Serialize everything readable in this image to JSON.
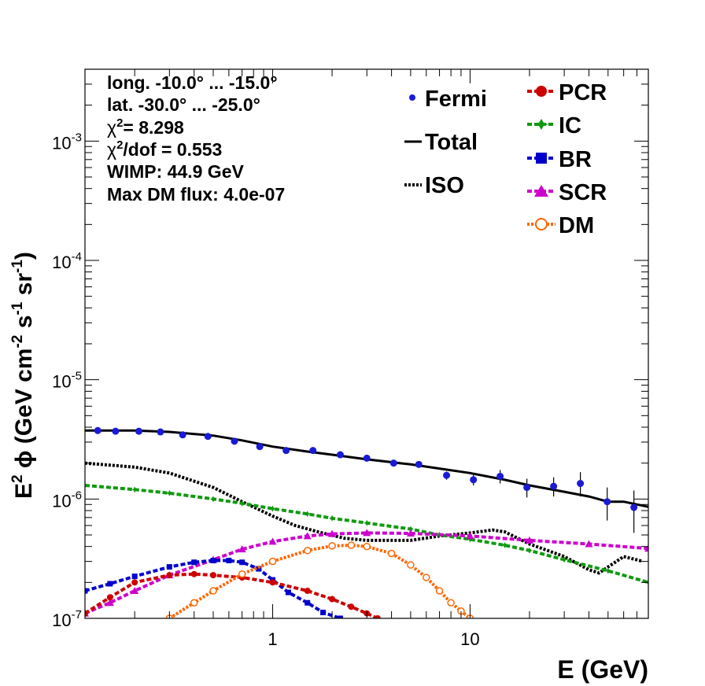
{
  "chart_data": {
    "type": "line",
    "xlabel": "E (GeV)",
    "ylabel": "E",
    "xscale": "log",
    "yscale": "log",
    "xlim": [
      0.112,
      80
    ],
    "ylim": [
      1e-07,
      0.004
    ],
    "grid": false,
    "legend_placement": "top-right",
    "x_tick_labels": [
      {
        "value": 1,
        "label": "1"
      },
      {
        "value": 10,
        "label": "10"
      }
    ],
    "y_tick_labels": [
      {
        "value": 1e-07,
        "mant": "10",
        "exp": "-7"
      },
      {
        "value": 1e-06,
        "mant": "10",
        "exp": "-6"
      },
      {
        "value": 1e-05,
        "mant": "10",
        "exp": "-5"
      },
      {
        "value": 0.0001,
        "mant": "10",
        "exp": "-4"
      },
      {
        "value": 0.001,
        "mant": "10",
        "exp": "-3"
      }
    ],
    "info": {
      "long": "long. -10.0° ... -15.0°",
      "lat": "lat. -30.0° ... -25.0°",
      "chi2": "= 8.298",
      "chi2dof": "/dof = 0.553",
      "wimp": "WIMP: 44.9 GeV",
      "maxdm": "Max DM flux: 4.0e-07"
    },
    "legend_left": {
      "fermi": "Fermi",
      "total": "Total",
      "iso": "ISO"
    },
    "legend_right": {
      "pcr": "PCR",
      "ic": "IC",
      "br": "BR",
      "scr": "SCR",
      "dm": "DM"
    },
    "colors": {
      "fermi": "#1a1ad6",
      "total": "#000000",
      "iso": "#000000",
      "pcr": "#cc0000",
      "ic": "#119911",
      "br": "#0000cc",
      "scr": "#cc00cc",
      "dm": "#ff6600"
    },
    "fermi": {
      "x": [
        0.13,
        0.16,
        0.21,
        0.27,
        0.35,
        0.47,
        0.64,
        0.86,
        1.17,
        1.6,
        2.2,
        3.0,
        4.1,
        5.5,
        7.6,
        10.4,
        14.2,
        19.4,
        26.5,
        36.2,
        49.5,
        67.6
      ],
      "y": [
        3.75e-06,
        3.7e-06,
        3.7e-06,
        3.65e-06,
        3.45e-06,
        3.35e-06,
        3.05e-06,
        2.75e-06,
        2.55e-06,
        2.55e-06,
        2.35e-06,
        2.2e-06,
        2e-06,
        1.95e-06,
        1.58e-06,
        1.45e-06,
        1.55e-06,
        1.25e-06,
        1.28e-06,
        1.35e-06,
        9.5e-07,
        8.5e-07
      ],
      "err_lo": [
        3.7e-06,
        3.65e-06,
        3.65e-06,
        3.6e-06,
        3.4e-06,
        3.3e-06,
        3e-06,
        2.7e-06,
        2.5e-06,
        2.5e-06,
        2.3e-06,
        2.15e-06,
        1.95e-06,
        1.85e-06,
        1.45e-06,
        1.3e-06,
        1.35e-06,
        1.03e-06,
        1.05e-06,
        1.05e-06,
        6.6e-07,
        5.2e-07
      ],
      "err_hi": [
        3.8e-06,
        3.75e-06,
        3.75e-06,
        3.7e-06,
        3.5e-06,
        3.4e-06,
        3.1e-06,
        2.8e-06,
        2.6e-06,
        2.6e-06,
        2.4e-06,
        2.25e-06,
        2.05e-06,
        2.05e-06,
        1.7e-06,
        1.6e-06,
        1.75e-06,
        1.48e-06,
        1.52e-06,
        1.68e-06,
        1.25e-06,
        1.18e-06
      ]
    },
    "series": [
      {
        "key": "total",
        "style": "solid",
        "x": [
          0.112,
          0.2,
          0.3,
          0.5,
          0.7,
          1.0,
          1.5,
          2,
          3,
          5,
          7,
          10,
          15,
          20,
          30,
          40,
          50,
          60,
          80
        ],
        "y": [
          3.75e-06,
          3.75e-06,
          3.65e-06,
          3.4e-06,
          3.1e-06,
          2.75e-06,
          2.5e-06,
          2.35e-06,
          2.15e-06,
          1.95e-06,
          1.8e-06,
          1.65e-06,
          1.45e-06,
          1.3e-06,
          1.15e-06,
          1.05e-06,
          9.5e-07,
          9.5e-07,
          8.6e-07
        ]
      },
      {
        "key": "iso",
        "style": "dotted",
        "x": [
          0.112,
          0.2,
          0.3,
          0.5,
          0.7,
          1.0,
          1.3,
          1.7,
          2.3,
          3,
          5,
          7,
          10,
          13,
          15,
          20,
          30,
          40,
          45,
          50,
          60,
          75
        ],
        "y": [
          2e-06,
          1.85e-06,
          1.65e-06,
          1.25e-06,
          9.5e-07,
          7.2e-07,
          6e-07,
          5.3e-07,
          4.7e-07,
          4.5e-07,
          4.5e-07,
          4.9e-07,
          5.2e-07,
          5.5e-07,
          5.3e-07,
          4.2e-07,
          3.3e-07,
          2.55e-07,
          2.4e-07,
          2.7e-07,
          3.3e-07,
          3e-07
        ]
      },
      {
        "key": "ic",
        "style": "dashed",
        "marker": "star",
        "x": [
          0.112,
          0.2,
          0.3,
          0.5,
          0.7,
          1.0,
          1.5,
          2,
          3,
          5,
          7,
          10,
          15,
          20,
          30,
          50,
          80
        ],
        "y": [
          1.3e-06,
          1.2e-06,
          1.12e-06,
          1e-06,
          9.2e-07,
          8.3e-07,
          7.5e-07,
          6.9e-07,
          6.3e-07,
          5.6e-07,
          5e-07,
          4.6e-07,
          4.1e-07,
          3.7e-07,
          3.1e-07,
          2.5e-07,
          2e-07
        ]
      },
      {
        "key": "scr",
        "style": "dashed",
        "marker": "triangle",
        "x": [
          0.112,
          0.15,
          0.2,
          0.3,
          0.5,
          0.7,
          1.0,
          1.5,
          2,
          3,
          5,
          10,
          20,
          40,
          80
        ],
        "y": [
          1.1e-07,
          1.35e-07,
          1.7e-07,
          2.3e-07,
          3.1e-07,
          3.8e-07,
          4.4e-07,
          4.9e-07,
          5.1e-07,
          5.2e-07,
          5.15e-07,
          4.9e-07,
          4.5e-07,
          4.2e-07,
          3.85e-07
        ]
      },
      {
        "key": "br",
        "style": "dashed",
        "marker": "square",
        "x": [
          0.112,
          0.15,
          0.2,
          0.3,
          0.4,
          0.5,
          0.6,
          0.7,
          0.85,
          1.0,
          1.2,
          1.5,
          1.8,
          2.2
        ],
        "y": [
          1.7e-07,
          1.95e-07,
          2.25e-07,
          2.7e-07,
          2.95e-07,
          3.05e-07,
          3.05e-07,
          2.95e-07,
          2.6e-07,
          2.1e-07,
          1.65e-07,
          1.35e-07,
          1.12e-07,
          1e-07
        ]
      },
      {
        "key": "pcr",
        "style": "dashed",
        "marker": "circle",
        "x": [
          0.112,
          0.15,
          0.2,
          0.3,
          0.4,
          0.5,
          0.7,
          1.0,
          1.5,
          2.0,
          2.5,
          3.0,
          3.4
        ],
        "y": [
          1.1e-07,
          1.5e-07,
          2e-07,
          2.3e-07,
          2.35e-07,
          2.3e-07,
          2.2e-07,
          2e-07,
          1.7e-07,
          1.45e-07,
          1.25e-07,
          1.1e-07,
          1e-07
        ]
      },
      {
        "key": "dm",
        "style": "dotted",
        "marker": "opencircle",
        "x": [
          0.3,
          0.4,
          0.5,
          0.7,
          1.0,
          1.5,
          2.0,
          2.5,
          3.0,
          4.0,
          5.0,
          6.0,
          7.0,
          8.0,
          9.0,
          10.0
        ],
        "y": [
          1e-07,
          1.35e-07,
          1.7e-07,
          2.35e-07,
          3e-07,
          3.7e-07,
          4.05e-07,
          4.1e-07,
          4e-07,
          3.5e-07,
          2.8e-07,
          2.2e-07,
          1.7e-07,
          1.35e-07,
          1.15e-07,
          1e-07
        ]
      }
    ]
  }
}
